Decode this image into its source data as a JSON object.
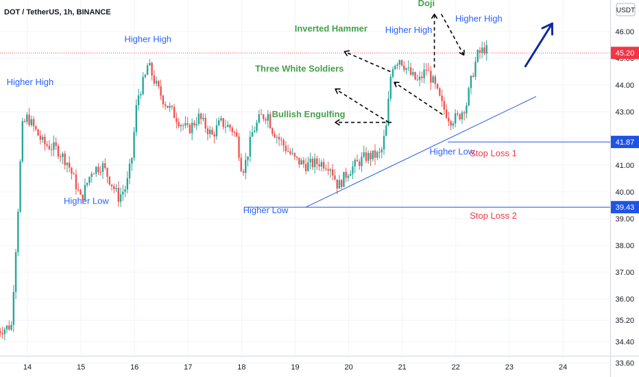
{
  "header": {
    "title": "DOT / TetherUS, 1h, BINANCE"
  },
  "price_scale": {
    "currency_label": "USDT",
    "ticks": [
      "46.00",
      "45.00",
      "44.00",
      "43.00",
      "42.00",
      "41.00",
      "40.00",
      "39.00",
      "38.00",
      "37.00",
      "36.00",
      "35.20",
      "34.40",
      "33.60"
    ],
    "last_price_label": "45.20",
    "level_labels": [
      "41.87",
      "39.43"
    ]
  },
  "colors": {
    "up": "#26a69a",
    "down": "#ef5350",
    "label_green": "#43a047",
    "label_blue": "#2962ff",
    "label_red": "#f23645",
    "trend_blue": "#1e53e5",
    "arrow_navy": "#0d2b9c",
    "last_price": "#f23645"
  },
  "chart_data": {
    "type": "candlestick",
    "x_axis": {
      "tick_labels": [
        "14",
        "15",
        "16",
        "17",
        "18",
        "19",
        "20",
        "21",
        "22",
        "23",
        "24"
      ]
    },
    "y_axis": {
      "range": [
        33.2,
        46.6
      ],
      "tick_values": [
        46.0,
        45.0,
        44.0,
        43.0,
        42.0,
        41.0,
        40.0,
        39.0,
        38.0,
        37.0,
        36.0,
        35.2,
        34.4,
        33.6
      ]
    },
    "last_price": 45.2,
    "series_path": [
      [
        13.45,
        34.8
      ],
      [
        13.7,
        35.0
      ],
      [
        13.82,
        39.2
      ],
      [
        13.9,
        42.4
      ],
      [
        14.0,
        42.8
      ],
      [
        14.3,
        41.8
      ],
      [
        14.55,
        41.6
      ],
      [
        14.75,
        41.1
      ],
      [
        14.9,
        40.3
      ],
      [
        15.0,
        39.7
      ],
      [
        15.2,
        40.8
      ],
      [
        15.4,
        41.0
      ],
      [
        15.55,
        40.4
      ],
      [
        15.7,
        39.8
      ],
      [
        15.85,
        40.2
      ],
      [
        15.95,
        41.3
      ],
      [
        16.05,
        43.5
      ],
      [
        16.2,
        44.3
      ],
      [
        16.25,
        44.8
      ],
      [
        16.4,
        44.0
      ],
      [
        16.55,
        43.4
      ],
      [
        16.7,
        43.0
      ],
      [
        16.85,
        42.6
      ],
      [
        17.0,
        42.3
      ],
      [
        17.2,
        42.8
      ],
      [
        17.45,
        42.1
      ],
      [
        17.6,
        42.6
      ],
      [
        17.8,
        42.4
      ],
      [
        17.9,
        42.1
      ],
      [
        18.0,
        40.9
      ],
      [
        18.05,
        40.9
      ],
      [
        18.2,
        42.2
      ],
      [
        18.35,
        42.8
      ],
      [
        18.5,
        42.9
      ],
      [
        18.55,
        42.4
      ],
      [
        18.8,
        41.7
      ],
      [
        19.0,
        41.2
      ],
      [
        19.2,
        41.0
      ],
      [
        19.45,
        41.1
      ],
      [
        19.65,
        41.0
      ],
      [
        19.8,
        40.2
      ],
      [
        20.0,
        40.8
      ],
      [
        20.3,
        41.3
      ],
      [
        20.6,
        41.4
      ],
      [
        20.7,
        42.4
      ],
      [
        20.8,
        44.7
      ],
      [
        20.95,
        45.0
      ],
      [
        21.15,
        44.4
      ],
      [
        21.3,
        44.1
      ],
      [
        21.45,
        44.6
      ],
      [
        21.6,
        44.0
      ],
      [
        21.75,
        43.2
      ],
      [
        21.9,
        42.7
      ],
      [
        22.05,
        42.8
      ],
      [
        22.2,
        43.3
      ],
      [
        22.3,
        44.3
      ],
      [
        22.4,
        45.1
      ],
      [
        22.55,
        45.4
      ],
      [
        22.6,
        45.2
      ]
    ],
    "annotations": [
      {
        "text": "Higher High",
        "color": "blue",
        "x": 14.05,
        "y": 44.0
      },
      {
        "text": "Higher Low",
        "color": "blue",
        "x": 15.1,
        "y": 39.55
      },
      {
        "text": "Higher High",
        "color": "blue",
        "x": 16.25,
        "y": 45.6
      },
      {
        "text": "Higher Low",
        "color": "blue",
        "x": 18.45,
        "y": 39.2
      },
      {
        "text": "Three White Soldiers",
        "color": "green",
        "x": 19.08,
        "y": 44.5
      },
      {
        "text": "Inverted Hammer",
        "color": "green",
        "x": 19.67,
        "y": 46.0
      },
      {
        "text": "Bullish Engulfing",
        "color": "green",
        "x": 19.25,
        "y": 42.8
      },
      {
        "text": "Higher High",
        "color": "blue",
        "x": 21.12,
        "y": 45.95
      },
      {
        "text": "Doji",
        "color": "green",
        "x": 21.45,
        "y": 46.95
      },
      {
        "text": "Higher High",
        "color": "blue",
        "x": 22.43,
        "y": 46.37
      },
      {
        "text": "Higher Low",
        "color": "blue",
        "x": 21.93,
        "y": 41.4
      },
      {
        "text": "Stop Loss 1",
        "color": "red",
        "x": 22.7,
        "y": 41.33
      },
      {
        "text": "Stop Loss 2",
        "color": "red",
        "x": 22.7,
        "y": 39.0
      }
    ],
    "horizontal_levels": [
      {
        "name": "stop-loss-1-line",
        "value": 41.87,
        "from_x": 21.85
      },
      {
        "name": "stop-loss-2-line",
        "value": 39.43,
        "from_x": 18.05
      }
    ],
    "trendline": {
      "from": [
        19.2,
        39.43
      ],
      "to": [
        23.5,
        43.57
      ]
    },
    "dashed_arrows": [
      {
        "from": [
          20.8,
          42.6
        ],
        "to": [
          19.75,
          42.6
        ]
      },
      {
        "from": [
          20.75,
          42.6
        ],
        "to": [
          19.75,
          43.85
        ]
      },
      {
        "from": [
          20.78,
          44.5
        ],
        "to": [
          19.92,
          45.25
        ]
      },
      {
        "from": [
          21.75,
          42.9
        ],
        "to": [
          20.85,
          44.1
        ]
      },
      {
        "from": [
          21.6,
          44.65
        ],
        "to": [
          21.6,
          46.65
        ]
      },
      {
        "from": [
          21.73,
          46.65
        ],
        "to": [
          22.15,
          45.12
        ]
      }
    ],
    "target_arrow": {
      "from": [
        23.3,
        44.7
      ],
      "to": [
        23.8,
        46.3
      ]
    }
  }
}
